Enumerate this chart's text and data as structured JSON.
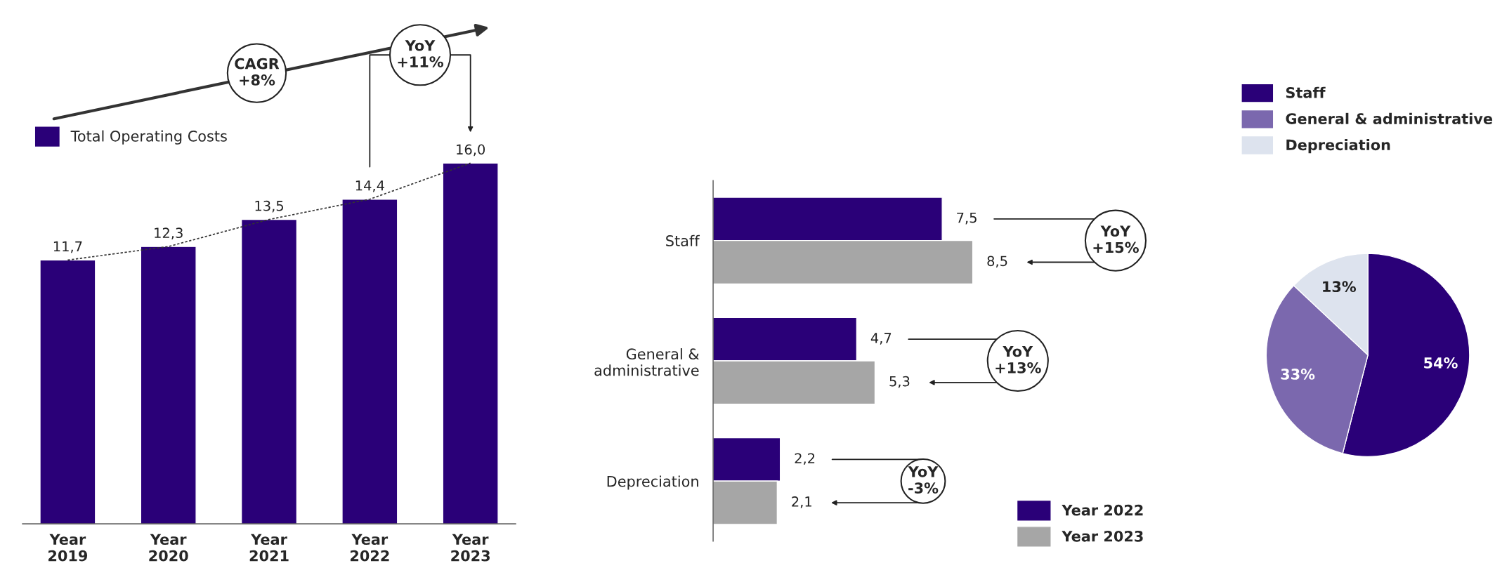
{
  "chart_data": [
    {
      "type": "bar",
      "categories": [
        "Year\n2019",
        "Year\n2020",
        "Year\n2021",
        "Year\n2022",
        "Year\n2023"
      ],
      "legend": "top left",
      "grid": false,
      "series": [
        {
          "name": "Total Operating Costs",
          "color": "#2a0078",
          "values": [
            11.7,
            12.3,
            13.5,
            14.4,
            16.0
          ],
          "value_labels": [
            "11,7",
            "12,3",
            "13,5",
            "14,4",
            "16,0"
          ]
        },
        {
          "type": "line",
          "color": "#333333",
          "line_style": "dashed",
          "marker": "none",
          "values": [
            11.7,
            12.3,
            13.5,
            14.4,
            16.0
          ]
        }
      ],
      "annotations": [
        "CAGR\n+8%",
        "YoY\n+11%"
      ]
    },
    {
      "type": "bar",
      "orientation": "horizontal",
      "categories": [
        "Staff",
        "General &\nadministrative",
        "Depreciation"
      ],
      "legend": "bottom right",
      "grid": false,
      "series": [
        {
          "name": "Year 2022",
          "color": "#2a0078",
          "values": [
            7.5,
            4.7,
            2.2
          ],
          "value_labels": [
            "7,5",
            "4,7",
            "2,2"
          ]
        },
        {
          "name": "Year 2023",
          "color": "#a6a6a6",
          "values": [
            8.5,
            5.3,
            2.1
          ],
          "value_labels": [
            "8,5",
            "5,3",
            "2,1"
          ]
        }
      ],
      "annotations": [
        "YoY\n+15%",
        "YoY\n+13%",
        "YoY\n-3%"
      ]
    },
    {
      "type": "pie",
      "categories": [
        "Staff",
        "General & administrative",
        "Depreciation"
      ],
      "values": [
        54,
        33,
        13
      ],
      "colors": [
        "#2a0078",
        "#7b68ae",
        "#dde3ee"
      ],
      "value_labels": [
        "54%",
        "33%",
        "13%"
      ],
      "legend": "top left"
    }
  ]
}
